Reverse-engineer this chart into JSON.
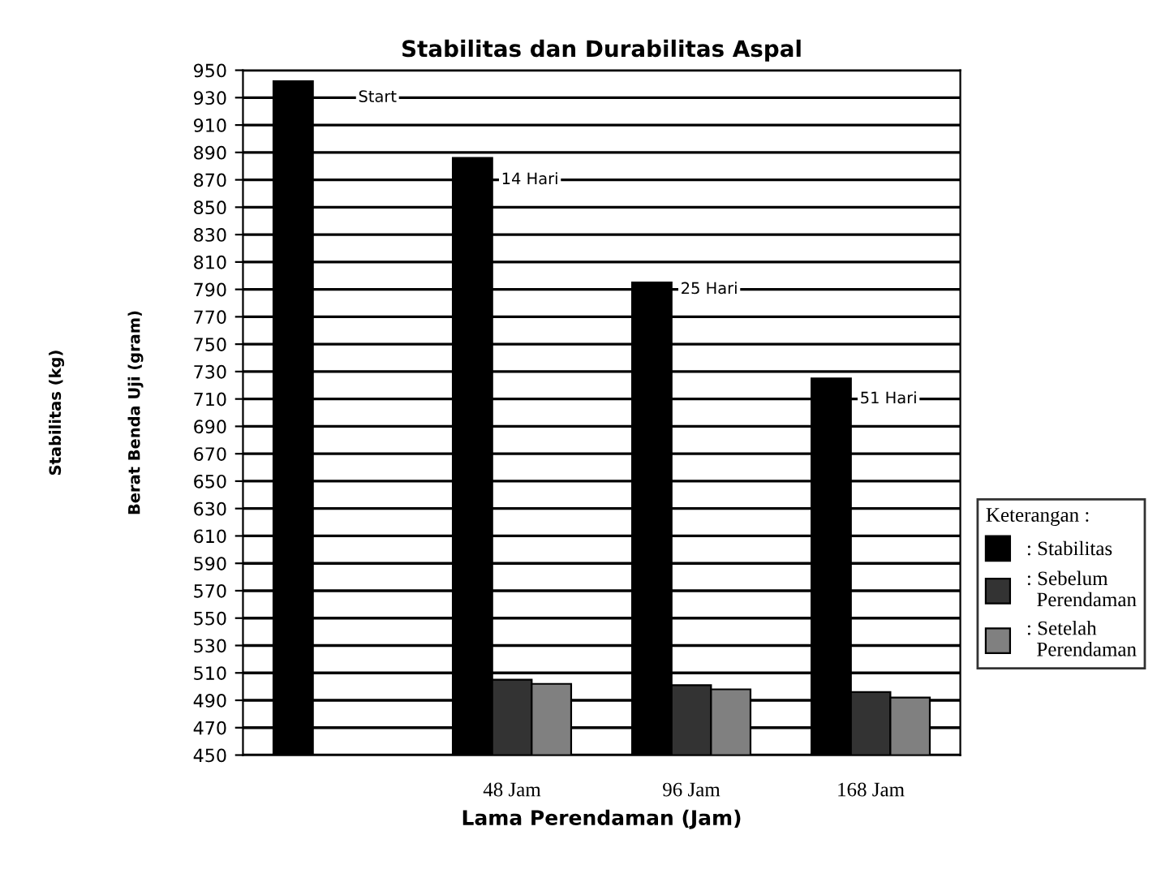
{
  "chart_data": {
    "type": "bar",
    "title": "Stabilitas dan Durabilitas Aspal",
    "xlabel": "Lama Perendaman (Jam)",
    "ylabel": "Berat Benda Uji (gram)",
    "categories": [
      null,
      "48 Jam",
      "96 Jam",
      "168 Jam"
    ],
    "series": [
      {
        "name": ": Stabilitas",
        "color": "#000000",
        "values": [
          942,
          886,
          795,
          725
        ]
      },
      {
        "name": ": Sebelum Perendaman",
        "color": "#333333",
        "values": [
          null,
          505,
          501,
          496
        ]
      },
      {
        "name": ": Setelah Perendaman",
        "color": "#808080",
        "values": [
          null,
          502,
          498,
          492
        ]
      }
    ],
    "legend_title": "Keterangan :",
    "annotations": [
      "Stabilitas (kg)",
      {
        "text": "Start",
        "y": 930
      },
      {
        "text": "14 Hari",
        "y": 870
      },
      {
        "text": "25 Hari",
        "y": 790
      },
      {
        "text": "51 Hari",
        "y": 710
      }
    ],
    "ylim": [
      450,
      950
    ],
    "yticks": [
      450,
      470,
      490,
      510,
      530,
      550,
      570,
      590,
      610,
      630,
      650,
      670,
      690,
      710,
      730,
      750,
      770,
      790,
      810,
      830,
      850,
      870,
      890,
      910,
      930,
      950
    ],
    "grid": "y",
    "legend": "right"
  }
}
